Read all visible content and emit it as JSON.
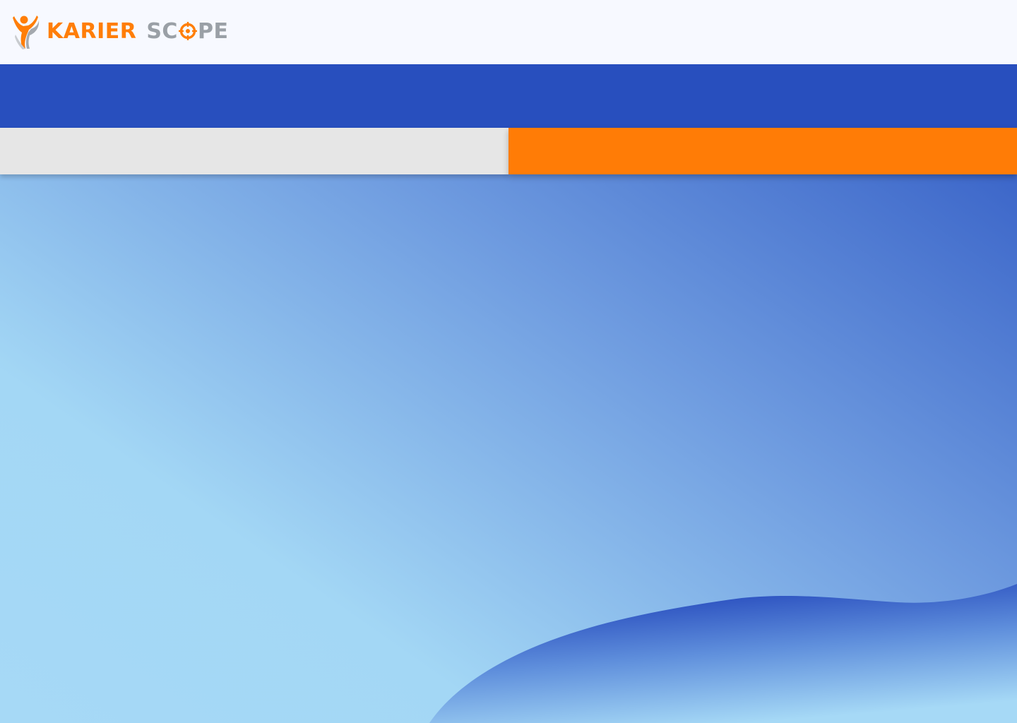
{
  "brand": {
    "name_part_1": "KARIER",
    "name_part_2_prefix": "SC",
    "name_part_2_suffix": "PE",
    "colors": {
      "orange": "#ff7e08",
      "grey": "#9aa0a6",
      "blue": "#284fbe"
    }
  },
  "tabs": [
    {
      "label": "",
      "active": false,
      "color": "#e6e6e6"
    },
    {
      "label": "",
      "active": true,
      "color": "#ff7c06"
    }
  ],
  "icons": {
    "logo": "person-raising-arm-logo-icon",
    "target": "target-crosshair-icon"
  }
}
